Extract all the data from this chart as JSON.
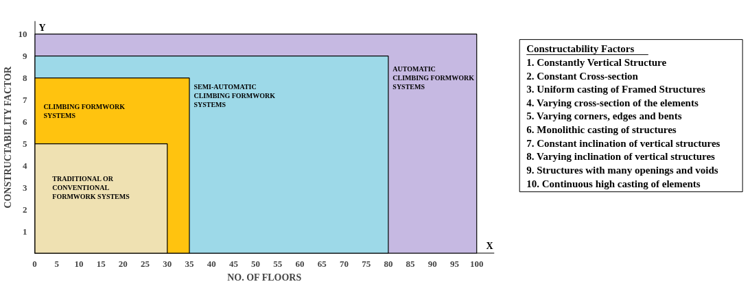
{
  "chart_data": [
    {
      "type": "area",
      "xlabel": "NO. OF FLOORS",
      "ylabel": "CONSTRUCTABILITY FACTOR",
      "xlim": [
        0,
        104
      ],
      "ylim": [
        0,
        10.6
      ],
      "xticks": [
        0,
        5,
        10,
        15,
        20,
        25,
        30,
        35,
        40,
        45,
        50,
        55,
        60,
        65,
        70,
        75,
        80,
        85,
        90,
        95,
        100
      ],
      "yticks": [
        1,
        2,
        3,
        4,
        5,
        6,
        7,
        8,
        9,
        10
      ],
      "grid": false,
      "series": [
        {
          "name": "AUTOMATIC CLIMBING FORMWORK SYSTEMS",
          "color": "#c6b9e2",
          "x": [
            0,
            100
          ],
          "values": [
            10,
            10
          ]
        },
        {
          "name": "SEMI-AUTOMATIC CLIMBING FORMWORK SYSTEMS",
          "color": "#9dd9e8",
          "x": [
            0,
            80
          ],
          "values": [
            9,
            9
          ]
        },
        {
          "name": "CLIMBING FORMWORK SYSTEMS",
          "color": "#ffc30f",
          "x": [
            0,
            35
          ],
          "values": [
            8,
            8
          ]
        },
        {
          "name": "TRADITIONAL OR CONVENTIONAL FORMWORK SYSTEMS",
          "color": "#efe1b2",
          "x": [
            0,
            30
          ],
          "values": [
            5,
            5
          ]
        }
      ],
      "annotations": [
        "Y",
        "X"
      ]
    },
    {
      "type": "other",
      "title": "Constructability Factors",
      "annotations": [
        "1. Constantly Vertical Structure",
        "2. Constant Cross-section",
        "3. Uniform casting of Framed Structures",
        "4. Varying cross-section of the elements",
        "5. Varying corners, edges and bents",
        "6. Monolithic casting of structures",
        "7. Constant inclination of vertical structures",
        "8. Varying inclination of vertical structures",
        "9. Structures with many openings and voids",
        "10. Continuous high casting of elements"
      ]
    }
  ]
}
